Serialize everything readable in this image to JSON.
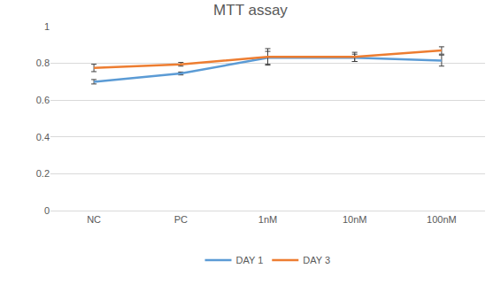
{
  "chart_data": {
    "type": "line",
    "title": "MTT assay",
    "categories": [
      "NC",
      "PC",
      "1nM",
      "10nM",
      "100nM"
    ],
    "series": [
      {
        "name": "DAY 1",
        "color": "#5b9bd5",
        "values": [
          0.7,
          0.745,
          0.83,
          0.83,
          0.815
        ],
        "errors": [
          0.012,
          0.008,
          0.035,
          0.02,
          0.03
        ]
      },
      {
        "name": "DAY 3",
        "color": "#ed7d31",
        "values": [
          0.775,
          0.795,
          0.835,
          0.835,
          0.87
        ],
        "errors": [
          0.02,
          0.01,
          0.045,
          0.025,
          0.02
        ]
      }
    ],
    "ylim": [
      0,
      1
    ],
    "yticks": [
      0,
      0.2,
      0.4,
      0.6,
      0.8,
      1
    ],
    "grid": true,
    "legend": "bottom"
  }
}
